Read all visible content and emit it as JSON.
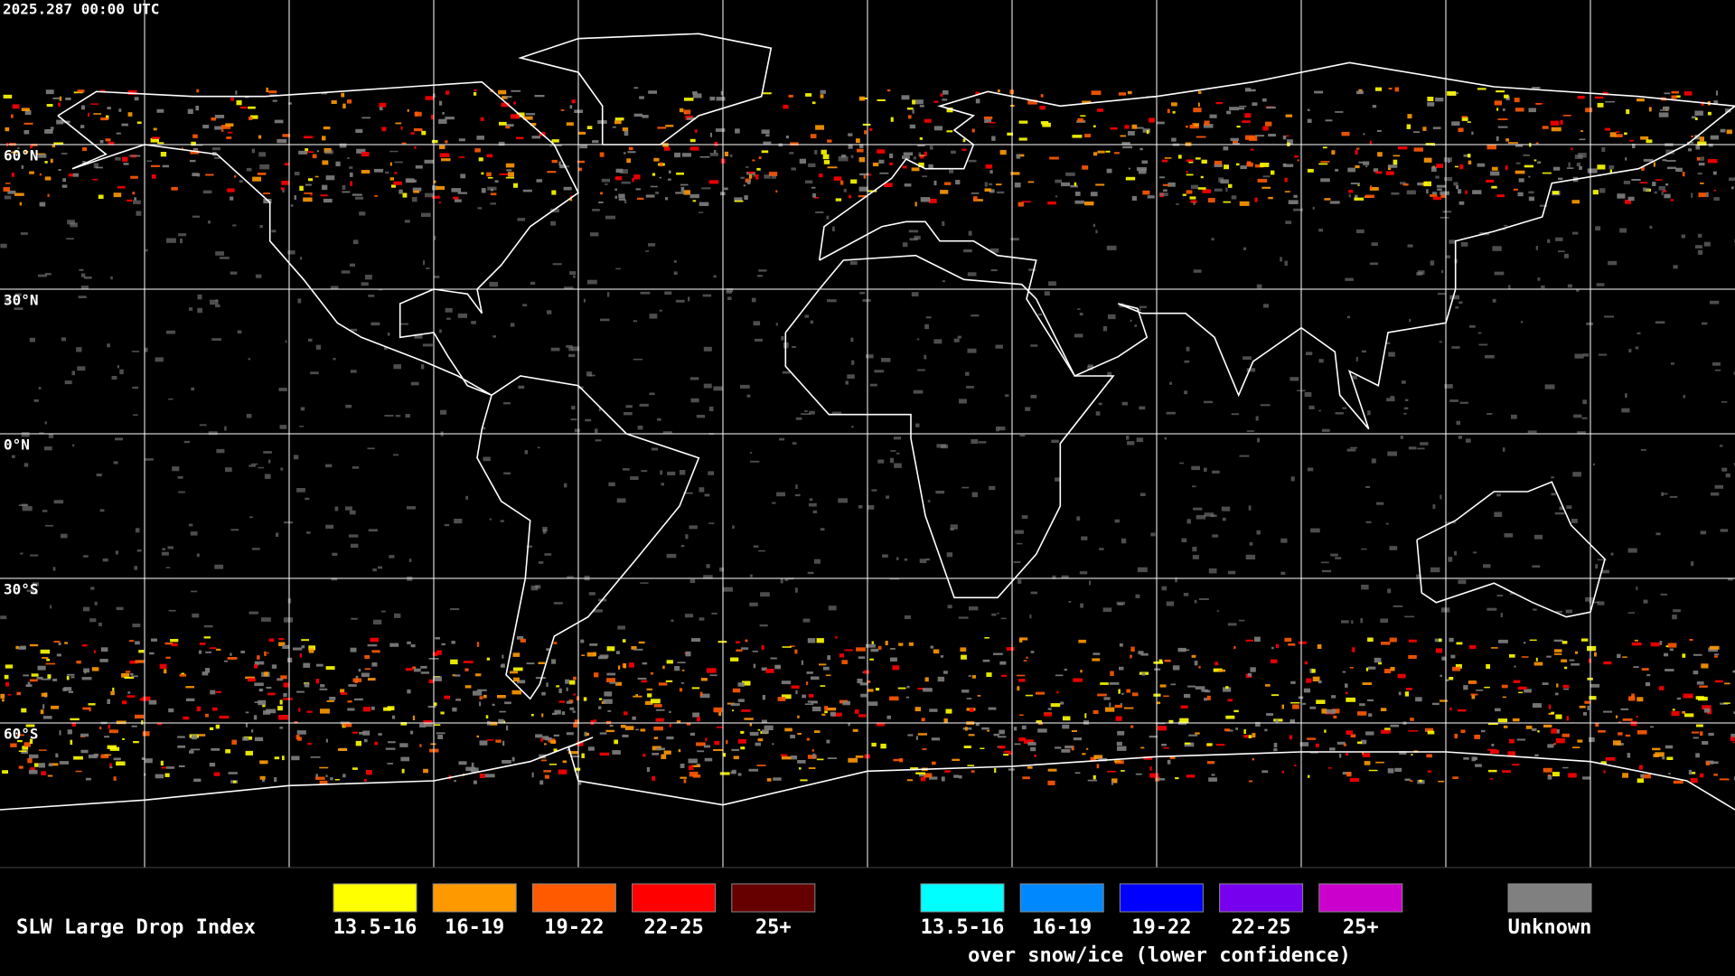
{
  "header": {
    "timestamp": "2025.287 00:00 UTC"
  },
  "map": {
    "latitude_labels": [
      "60°N",
      "30°N",
      "0°N",
      "30°S",
      "60°S"
    ]
  },
  "legend": {
    "title": "SLW Large Drop Index",
    "groups": [
      {
        "items": [
          {
            "label": "13.5-16",
            "color": "#ffff00"
          },
          {
            "label": "16-19",
            "color": "#ff9900"
          },
          {
            "label": "19-22",
            "color": "#ff5a00"
          },
          {
            "label": "22-25",
            "color": "#ff0000"
          },
          {
            "label": "25+",
            "color": "#660000"
          }
        ]
      },
      {
        "items": [
          {
            "label": "13.5-16",
            "color": "#00ffff"
          },
          {
            "label": "16-19",
            "color": "#0088ff"
          },
          {
            "label": "19-22",
            "color": "#0000ff"
          },
          {
            "label": "22-25",
            "color": "#7700ee"
          },
          {
            "label": "25+",
            "color": "#cc00cc"
          }
        ],
        "caption": "over snow/ice (lower confidence)"
      },
      {
        "items": [
          {
            "label": "Unknown",
            "color": "#808080"
          }
        ]
      }
    ]
  }
}
